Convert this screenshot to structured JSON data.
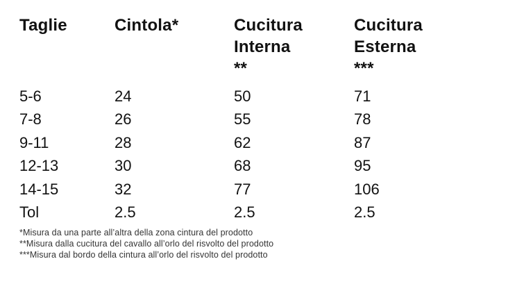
{
  "colors": {
    "background": "#ffffff",
    "table_text": "#111111",
    "footnote_text": "#333333"
  },
  "chart_data": {
    "type": "table",
    "headers": [
      {
        "label": "Taglie",
        "marker": ""
      },
      {
        "label": "Cintola*",
        "marker": ""
      },
      {
        "label": "Cucitura Interna",
        "marker": "**"
      },
      {
        "label": "Cucitura Esterna",
        "marker": "***"
      }
    ],
    "columns": [
      "Taglie",
      "Cintola*",
      "Cucitura Interna **",
      "Cucitura Esterna ***"
    ],
    "rows": [
      [
        "5-6",
        "24",
        "50",
        "71"
      ],
      [
        "7-8",
        "26",
        "55",
        "78"
      ],
      [
        "9-11",
        "28",
        "62",
        "87"
      ],
      [
        "12-13",
        "30",
        "68",
        "95"
      ],
      [
        "14-15",
        "32",
        "77",
        "106"
      ],
      [
        "Tol",
        "2.5",
        "2.5",
        "2.5"
      ]
    ],
    "footnotes": [
      "*Misura da una parte all’altra della zona cintura del prodotto",
      "**Misura dalla cucitura del cavallo all’orlo del risvolto del prodotto",
      "***Misura dal bordo della cintura all’orlo del risvolto del prodotto"
    ]
  }
}
